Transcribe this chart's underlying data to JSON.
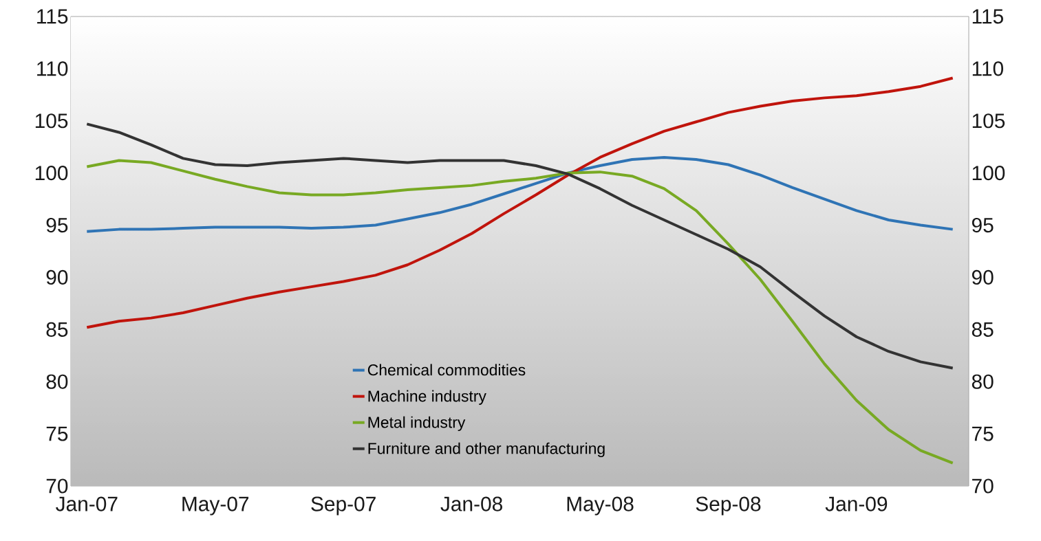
{
  "chart_data": {
    "type": "line",
    "categories": [
      "Jan-07",
      null,
      null,
      null,
      "May-07",
      null,
      null,
      null,
      "Sep-07",
      null,
      null,
      null,
      "Jan-08",
      null,
      null,
      null,
      "May-08",
      null,
      null,
      null,
      "Sep-08",
      null,
      null,
      null,
      "Jan-09",
      null,
      null,
      null
    ],
    "series": [
      {
        "name": "Chemical commodities",
        "color": "#2f74b5",
        "values": [
          94.4,
          94.6,
          94.6,
          94.7,
          94.8,
          94.8,
          94.8,
          94.7,
          94.8,
          95.0,
          95.6,
          96.2,
          97.0,
          98.0,
          99.0,
          100.0,
          100.7,
          101.3,
          101.5,
          101.3,
          100.8,
          99.8,
          98.6,
          97.5,
          96.4,
          95.5,
          95.0,
          94.6
        ]
      },
      {
        "name": "Machine industry",
        "color": "#c0140c",
        "values": [
          85.2,
          85.8,
          86.1,
          86.6,
          87.3,
          88.0,
          88.6,
          89.1,
          89.6,
          90.2,
          91.2,
          92.6,
          94.2,
          96.1,
          97.9,
          99.8,
          101.5,
          102.8,
          104.0,
          104.9,
          105.8,
          106.4,
          106.9,
          107.2,
          107.4,
          107.8,
          108.3,
          109.1
        ]
      },
      {
        "name": "Metal industry",
        "color": "#78a923",
        "values": [
          100.6,
          101.2,
          101.0,
          100.2,
          99.4,
          98.7,
          98.1,
          97.9,
          97.9,
          98.1,
          98.4,
          98.6,
          98.8,
          99.2,
          99.5,
          100.0,
          100.1,
          99.7,
          98.5,
          96.4,
          93.2,
          89.8,
          85.8,
          81.7,
          78.2,
          75.4,
          73.4,
          72.2
        ]
      },
      {
        "name": "Furniture and other manufacturing",
        "color": "#333333",
        "values": [
          104.7,
          103.9,
          102.7,
          101.4,
          100.8,
          100.7,
          101.0,
          101.2,
          101.4,
          101.2,
          101.0,
          101.2,
          101.2,
          101.2,
          100.7,
          99.9,
          98.5,
          96.9,
          95.5,
          94.1,
          92.7,
          91.0,
          88.6,
          86.3,
          84.3,
          82.9,
          81.9,
          81.3
        ]
      }
    ],
    "ylim": [
      70,
      115
    ],
    "yticks": [
      70,
      75,
      80,
      85,
      90,
      95,
      100,
      105,
      110,
      115
    ],
    "y2lim": [
      70,
      115
    ],
    "y2ticks": [
      70,
      75,
      80,
      85,
      90,
      95,
      100,
      105,
      110,
      115
    ],
    "legend": "bottom"
  }
}
